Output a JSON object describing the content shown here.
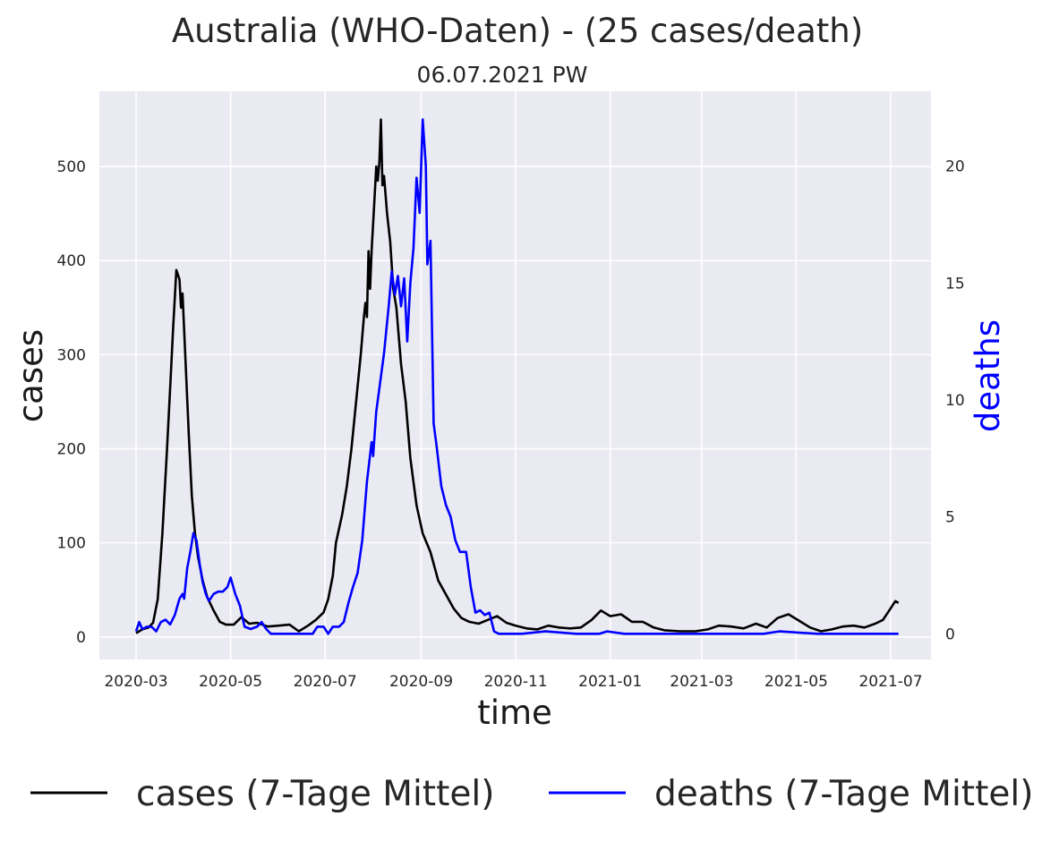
{
  "chart_data": {
    "type": "line",
    "title": "Australia (WHO-Daten) - (25 cases/death)",
    "subtitle": "06.07.2021 PW",
    "xlabel": "time",
    "ylabel_left": "cases",
    "ylabel_right": "deaths",
    "x_ticks": [
      "2020-03",
      "2020-05",
      "2020-07",
      "2020-09",
      "2020-11",
      "2021-01",
      "2021-03",
      "2021-05",
      "2021-07"
    ],
    "y_left_ticks": [
      0,
      100,
      200,
      300,
      400,
      500
    ],
    "y_right_ticks": [
      0,
      5,
      10,
      15,
      20
    ],
    "ylim_left": [
      -24,
      580
    ],
    "ylim_right": [
      -1.1,
      23.2
    ],
    "grid": true,
    "legend_position": "bottom",
    "colors": {
      "cases": "#000000",
      "deaths": "#0000ff",
      "plot_background": "#eaeaf2",
      "grid": "#ffffff"
    },
    "series": [
      {
        "name": "cases (7-Tage Mittel)",
        "axis": "left",
        "color": "#000000",
        "points": [
          [
            "2020-03-01",
            4
          ],
          [
            "2020-03-05",
            8
          ],
          [
            "2020-03-09",
            10
          ],
          [
            "2020-03-12",
            15
          ],
          [
            "2020-03-15",
            40
          ],
          [
            "2020-03-18",
            110
          ],
          [
            "2020-03-21",
            200
          ],
          [
            "2020-03-23",
            265
          ],
          [
            "2020-03-25",
            330
          ],
          [
            "2020-03-27",
            390
          ],
          [
            "2020-03-29",
            380
          ],
          [
            "2020-03-30",
            350
          ],
          [
            "2020-03-31",
            365
          ],
          [
            "2020-04-02",
            290
          ],
          [
            "2020-04-04",
            215
          ],
          [
            "2020-04-06",
            150
          ],
          [
            "2020-04-08",
            110
          ],
          [
            "2020-04-10",
            85
          ],
          [
            "2020-04-13",
            60
          ],
          [
            "2020-04-16",
            42
          ],
          [
            "2020-04-20",
            28
          ],
          [
            "2020-04-24",
            16
          ],
          [
            "2020-04-28",
            13
          ],
          [
            "2020-05-03",
            13
          ],
          [
            "2020-05-08",
            21
          ],
          [
            "2020-05-13",
            14
          ],
          [
            "2020-05-18",
            15
          ],
          [
            "2020-05-25",
            11
          ],
          [
            "2020-06-01",
            12
          ],
          [
            "2020-06-08",
            13
          ],
          [
            "2020-06-14",
            6
          ],
          [
            "2020-06-20",
            12
          ],
          [
            "2020-06-25",
            18
          ],
          [
            "2020-06-30",
            26
          ],
          [
            "2020-07-03",
            40
          ],
          [
            "2020-07-06",
            65
          ],
          [
            "2020-07-08",
            100
          ],
          [
            "2020-07-12",
            130
          ],
          [
            "2020-07-15",
            160
          ],
          [
            "2020-07-18",
            200
          ],
          [
            "2020-07-21",
            250
          ],
          [
            "2020-07-24",
            300
          ],
          [
            "2020-07-26",
            340
          ],
          [
            "2020-07-27",
            355
          ],
          [
            "2020-07-28",
            340
          ],
          [
            "2020-07-29",
            410
          ],
          [
            "2020-07-30",
            370
          ],
          [
            "2020-07-31",
            410
          ],
          [
            "2020-08-02",
            470
          ],
          [
            "2020-08-03",
            500
          ],
          [
            "2020-08-04",
            485
          ],
          [
            "2020-08-05",
            505
          ],
          [
            "2020-08-06",
            550
          ],
          [
            "2020-08-07",
            480
          ],
          [
            "2020-08-08",
            490
          ],
          [
            "2020-08-10",
            450
          ],
          [
            "2020-08-12",
            420
          ],
          [
            "2020-08-14",
            370
          ],
          [
            "2020-08-16",
            350
          ],
          [
            "2020-08-19",
            290
          ],
          [
            "2020-08-22",
            250
          ],
          [
            "2020-08-25",
            190
          ],
          [
            "2020-08-29",
            140
          ],
          [
            "2020-09-02",
            110
          ],
          [
            "2020-09-07",
            90
          ],
          [
            "2020-09-12",
            60
          ],
          [
            "2020-09-17",
            45
          ],
          [
            "2020-09-22",
            30
          ],
          [
            "2020-09-27",
            20
          ],
          [
            "2020-10-02",
            16
          ],
          [
            "2020-10-08",
            14
          ],
          [
            "2020-10-14",
            18
          ],
          [
            "2020-10-20",
            22
          ],
          [
            "2020-10-26",
            15
          ],
          [
            "2020-11-01",
            12
          ],
          [
            "2020-11-08",
            9
          ],
          [
            "2020-11-15",
            8
          ],
          [
            "2020-11-22",
            12
          ],
          [
            "2020-11-29",
            10
          ],
          [
            "2020-12-06",
            9
          ],
          [
            "2020-12-13",
            10
          ],
          [
            "2020-12-20",
            18
          ],
          [
            "2020-12-26",
            28
          ],
          [
            "2021-01-01",
            22
          ],
          [
            "2021-01-08",
            24
          ],
          [
            "2021-01-15",
            16
          ],
          [
            "2021-01-22",
            16
          ],
          [
            "2021-01-29",
            10
          ],
          [
            "2021-02-05",
            7
          ],
          [
            "2021-02-15",
            6
          ],
          [
            "2021-02-25",
            6
          ],
          [
            "2021-03-05",
            8
          ],
          [
            "2021-03-12",
            12
          ],
          [
            "2021-03-20",
            11
          ],
          [
            "2021-03-28",
            9
          ],
          [
            "2021-04-05",
            14
          ],
          [
            "2021-04-12",
            10
          ],
          [
            "2021-04-19",
            20
          ],
          [
            "2021-04-26",
            24
          ],
          [
            "2021-05-03",
            17
          ],
          [
            "2021-05-10",
            10
          ],
          [
            "2021-05-17",
            6
          ],
          [
            "2021-05-24",
            8
          ],
          [
            "2021-05-31",
            11
          ],
          [
            "2021-06-07",
            12
          ],
          [
            "2021-06-14",
            10
          ],
          [
            "2021-06-21",
            14
          ],
          [
            "2021-06-26",
            18
          ],
          [
            "2021-06-30",
            28
          ],
          [
            "2021-07-04",
            38
          ],
          [
            "2021-07-06",
            36
          ]
        ]
      },
      {
        "name": "deaths (7-Tage Mittel)",
        "axis": "right",
        "color": "#0000ff",
        "points": [
          [
            "2020-03-01",
            0.1
          ],
          [
            "2020-03-03",
            0.5
          ],
          [
            "2020-03-05",
            0.2
          ],
          [
            "2020-03-08",
            0.3
          ],
          [
            "2020-03-11",
            0.3
          ],
          [
            "2020-03-14",
            0.1
          ],
          [
            "2020-03-17",
            0.5
          ],
          [
            "2020-03-20",
            0.6
          ],
          [
            "2020-03-23",
            0.4
          ],
          [
            "2020-03-26",
            0.8
          ],
          [
            "2020-03-29",
            1.5
          ],
          [
            "2020-03-31",
            1.7
          ],
          [
            "2020-04-01",
            1.5
          ],
          [
            "2020-04-03",
            2.8
          ],
          [
            "2020-04-05",
            3.5
          ],
          [
            "2020-04-07",
            4.3
          ],
          [
            "2020-04-09",
            4.0
          ],
          [
            "2020-04-11",
            3.0
          ],
          [
            "2020-04-13",
            2.2
          ],
          [
            "2020-04-15",
            1.7
          ],
          [
            "2020-04-17",
            1.4
          ],
          [
            "2020-04-20",
            1.7
          ],
          [
            "2020-04-23",
            1.8
          ],
          [
            "2020-04-26",
            1.8
          ],
          [
            "2020-04-29",
            2.0
          ],
          [
            "2020-05-01",
            2.4
          ],
          [
            "2020-05-04",
            1.7
          ],
          [
            "2020-05-07",
            1.2
          ],
          [
            "2020-05-10",
            0.3
          ],
          [
            "2020-05-14",
            0.2
          ],
          [
            "2020-05-18",
            0.3
          ],
          [
            "2020-05-21",
            0.5
          ],
          [
            "2020-05-24",
            0.2
          ],
          [
            "2020-05-27",
            0.0
          ],
          [
            "2020-06-05",
            0.0
          ],
          [
            "2020-06-15",
            0.0
          ],
          [
            "2020-06-23",
            0.0
          ],
          [
            "2020-06-26",
            0.3
          ],
          [
            "2020-06-30",
            0.3
          ],
          [
            "2020-07-03",
            0.0
          ],
          [
            "2020-07-06",
            0.3
          ],
          [
            "2020-07-10",
            0.3
          ],
          [
            "2020-07-13",
            0.5
          ],
          [
            "2020-07-16",
            1.3
          ],
          [
            "2020-07-19",
            2.0
          ],
          [
            "2020-07-22",
            2.6
          ],
          [
            "2020-07-25",
            4.0
          ],
          [
            "2020-07-28",
            6.5
          ],
          [
            "2020-07-31",
            8.2
          ],
          [
            "2020-08-01",
            7.6
          ],
          [
            "2020-08-03",
            9.5
          ],
          [
            "2020-08-05",
            10.5
          ],
          [
            "2020-08-08",
            12.0
          ],
          [
            "2020-08-11",
            14.0
          ],
          [
            "2020-08-13",
            15.5
          ],
          [
            "2020-08-15",
            14.5
          ],
          [
            "2020-08-17",
            15.3
          ],
          [
            "2020-08-19",
            14.0
          ],
          [
            "2020-08-21",
            15.2
          ],
          [
            "2020-08-23",
            12.5
          ],
          [
            "2020-08-25",
            15.0
          ],
          [
            "2020-08-27",
            16.5
          ],
          [
            "2020-08-29",
            19.5
          ],
          [
            "2020-08-31",
            18.0
          ],
          [
            "2020-09-02",
            22.0
          ],
          [
            "2020-09-04",
            20.0
          ],
          [
            "2020-09-05",
            15.8
          ],
          [
            "2020-09-07",
            16.8
          ],
          [
            "2020-09-09",
            9.0
          ],
          [
            "2020-09-11",
            8.0
          ],
          [
            "2020-09-14",
            6.3
          ],
          [
            "2020-09-17",
            5.5
          ],
          [
            "2020-09-20",
            5.0
          ],
          [
            "2020-09-23",
            4.0
          ],
          [
            "2020-09-26",
            3.5
          ],
          [
            "2020-09-30",
            3.5
          ],
          [
            "2020-10-03",
            2.0
          ],
          [
            "2020-10-06",
            0.9
          ],
          [
            "2020-10-09",
            1.0
          ],
          [
            "2020-10-12",
            0.8
          ],
          [
            "2020-10-15",
            0.9
          ],
          [
            "2020-10-18",
            0.1
          ],
          [
            "2020-10-21",
            0.0
          ],
          [
            "2020-11-05",
            0.0
          ],
          [
            "2020-11-20",
            0.1
          ],
          [
            "2020-12-10",
            0.0
          ],
          [
            "2020-12-25",
            0.0
          ],
          [
            "2020-12-30",
            0.1
          ],
          [
            "2021-01-10",
            0.0
          ],
          [
            "2021-02-20",
            0.0
          ],
          [
            "2021-04-10",
            0.0
          ],
          [
            "2021-04-20",
            0.1
          ],
          [
            "2021-05-15",
            0.0
          ],
          [
            "2021-06-15",
            0.0
          ],
          [
            "2021-07-06",
            0.0
          ]
        ]
      }
    ]
  }
}
